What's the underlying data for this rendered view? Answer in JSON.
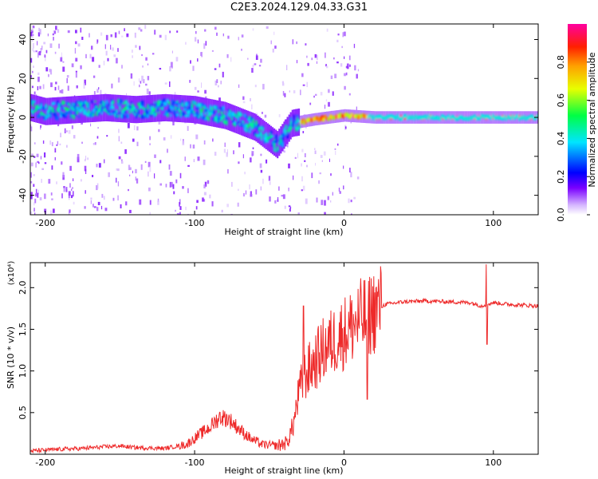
{
  "title": "C2E3.2024.129.04.33.G31",
  "colors": {
    "snr_line": "#ee2a2a",
    "axis": "#000000"
  },
  "chart_data": [
    {
      "type": "heatmap",
      "title": "C2E3.2024.129.04.33.G31",
      "xlabel": "Height of straight line (km)",
      "ylabel": "Frequency (Hz)",
      "xlim": [
        -210,
        130
      ],
      "ylim": [
        -50,
        48
      ],
      "x_ticks": [
        -200,
        -100,
        0,
        100
      ],
      "y_ticks": [
        -40,
        -20,
        0,
        20,
        40
      ],
      "colorbar": {
        "label": "Normalized spectral amplitude",
        "range": [
          0.0,
          1.0
        ],
        "ticks": [
          "0.0",
          "0.2",
          "0.4",
          "0.6",
          "0.8"
        ],
        "colormap": "rainbow (white-violet-blue-cyan-green-yellow-orange-red-magenta)"
      },
      "ridge": {
        "x": [
          -210,
          -200,
          -180,
          -160,
          -140,
          -120,
          -100,
          -80,
          -60,
          -45,
          -35,
          -20,
          0,
          20,
          60,
          100,
          130
        ],
        "y": [
          5,
          3,
          4,
          5,
          4,
          5,
          4,
          1,
          -5,
          -14,
          -3,
          -1,
          1,
          0,
          0,
          0,
          0
        ]
      }
    },
    {
      "type": "line",
      "xlabel": "Height of straight line (km)",
      "ylabel": "SNR (10 * v/v)",
      "y_multiplier": "(x10⁴)",
      "xlim": [
        -210,
        130
      ],
      "ylim": [
        0,
        2.3
      ],
      "x_ticks": [
        -200,
        -100,
        0,
        100
      ],
      "y_ticks": [
        "0.5",
        "1.0",
        "1.5",
        "2.0"
      ],
      "series": [
        {
          "x": [
            -210,
            -190,
            -175,
            -160,
            -150,
            -140,
            -120,
            -105,
            -98,
            -90,
            -83,
            -77,
            -70,
            -62,
            -55,
            -45,
            -38,
            -34,
            -30,
            -26,
            -20,
            -14,
            -8,
            -3,
            3,
            8,
            14,
            20,
            28,
            40,
            55,
            70,
            85,
            92,
            95,
            100,
            110,
            120,
            130
          ],
          "y": [
            0.04,
            0.06,
            0.07,
            0.09,
            0.1,
            0.08,
            0.07,
            0.12,
            0.22,
            0.32,
            0.45,
            0.42,
            0.3,
            0.18,
            0.12,
            0.1,
            0.14,
            0.35,
            0.75,
            0.95,
            1.1,
            1.25,
            1.35,
            1.42,
            1.5,
            1.58,
            1.65,
            1.72,
            1.8,
            1.83,
            1.84,
            1.83,
            1.82,
            1.78,
            1.8,
            1.82,
            1.8,
            1.79,
            1.78
          ]
        }
      ]
    }
  ]
}
